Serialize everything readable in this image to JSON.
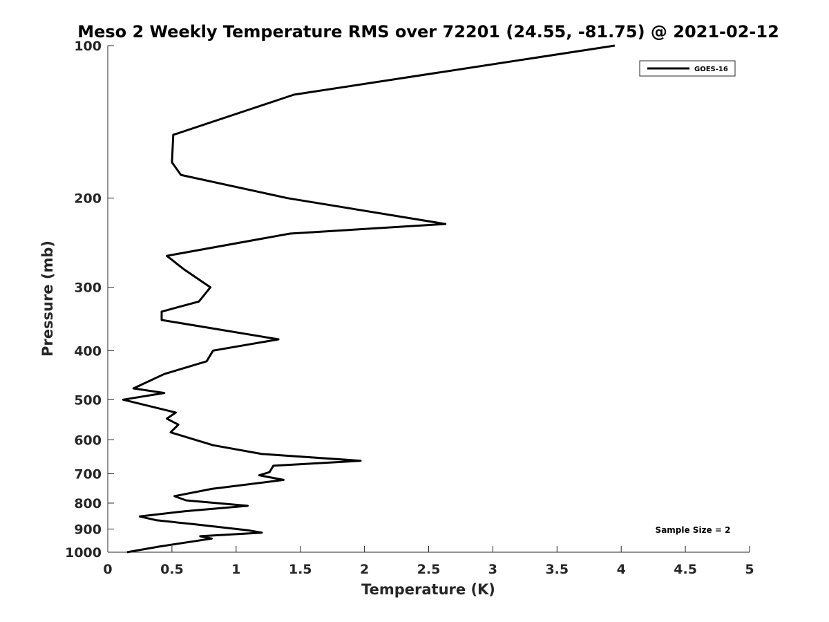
{
  "chart_data": {
    "type": "line",
    "title": "Meso 2 Weekly Temperature RMS over 72201 (24.55, -81.75) @ 2021-02-12",
    "xlabel": "Temperature (K)",
    "ylabel": "Pressure (mb)",
    "xlim": [
      0,
      5
    ],
    "ylim": [
      100,
      1000
    ],
    "y_scale": "log",
    "y_reversed": true,
    "x_ticks": [
      "0",
      "0.5",
      "1",
      "1.5",
      "2",
      "2.5",
      "3",
      "3.5",
      "4",
      "4.5",
      "5"
    ],
    "y_ticks": [
      "100",
      "200",
      "300",
      "400",
      "500",
      "600",
      "700",
      "800",
      "900",
      "1000"
    ],
    "grid": false,
    "legend": {
      "position": "top-right"
    },
    "annotation": "Sample Size = 2",
    "series": [
      {
        "name": "GOES-16",
        "color": "#000000",
        "points": [
          [
            3.95,
            100
          ],
          [
            1.45,
            125
          ],
          [
            0.51,
            150
          ],
          [
            0.5,
            170
          ],
          [
            0.57,
            180
          ],
          [
            1.4,
            200
          ],
          [
            2.63,
            225
          ],
          [
            1.42,
            235
          ],
          [
            0.46,
            260
          ],
          [
            0.59,
            276
          ],
          [
            0.8,
            300
          ],
          [
            0.71,
            320
          ],
          [
            0.42,
            335
          ],
          [
            0.42,
            348
          ],
          [
            1.33,
            380
          ],
          [
            0.82,
            400
          ],
          [
            0.77,
            420
          ],
          [
            0.44,
            445
          ],
          [
            0.2,
            475
          ],
          [
            0.44,
            485
          ],
          [
            0.12,
            500
          ],
          [
            0.53,
            530
          ],
          [
            0.46,
            545
          ],
          [
            0.55,
            560
          ],
          [
            0.49,
            580
          ],
          [
            0.82,
            615
          ],
          [
            1.2,
            640
          ],
          [
            1.97,
            660
          ],
          [
            1.29,
            675
          ],
          [
            1.26,
            695
          ],
          [
            1.18,
            705
          ],
          [
            1.37,
            720
          ],
          [
            0.81,
            750
          ],
          [
            0.52,
            775
          ],
          [
            0.61,
            790
          ],
          [
            1.09,
            810
          ],
          [
            0.6,
            830
          ],
          [
            0.25,
            850
          ],
          [
            0.38,
            865
          ],
          [
            0.66,
            880
          ],
          [
            1.09,
            905
          ],
          [
            1.2,
            915
          ],
          [
            0.72,
            930
          ],
          [
            0.81,
            940
          ],
          [
            0.4,
            975
          ],
          [
            0.15,
            1000
          ]
        ]
      }
    ]
  }
}
